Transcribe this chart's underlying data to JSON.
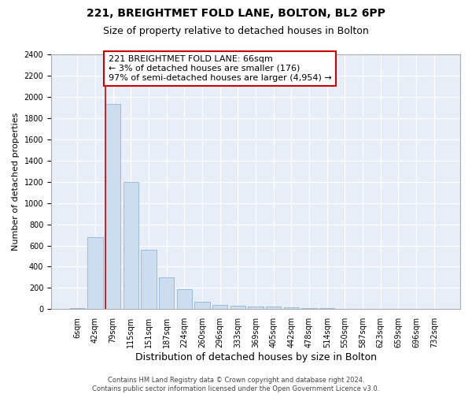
{
  "title_line1": "221, BREIGHTMET FOLD LANE, BOLTON, BL2 6PP",
  "title_line2": "Size of property relative to detached houses in Bolton",
  "xlabel": "Distribution of detached houses by size in Bolton",
  "ylabel": "Number of detached properties",
  "bar_color": "#ccddf0",
  "bar_edge_color": "#7bafd4",
  "categories": [
    "6sqm",
    "42sqm",
    "79sqm",
    "115sqm",
    "151sqm",
    "187sqm",
    "224sqm",
    "260sqm",
    "296sqm",
    "333sqm",
    "369sqm",
    "405sqm",
    "442sqm",
    "478sqm",
    "514sqm",
    "550sqm",
    "587sqm",
    "623sqm",
    "659sqm",
    "696sqm",
    "732sqm"
  ],
  "values": [
    8,
    680,
    1930,
    1200,
    560,
    300,
    190,
    70,
    40,
    30,
    25,
    25,
    18,
    12,
    8,
    6,
    4,
    3,
    3,
    3,
    3
  ],
  "ylim": [
    0,
    2400
  ],
  "yticks": [
    0,
    200,
    400,
    600,
    800,
    1000,
    1200,
    1400,
    1600,
    1800,
    2000,
    2200,
    2400
  ],
  "annotation_line1": "221 BREIGHTMET FOLD LANE: 66sqm",
  "annotation_line2": "← 3% of detached houses are smaller (176)",
  "annotation_line3": "97% of semi-detached houses are larger (4,954) →",
  "annotation_box_color": "#ffffff",
  "annotation_box_edge": "#cc0000",
  "property_line_color": "#cc0000",
  "footer_line1": "Contains HM Land Registry data © Crown copyright and database right 2024.",
  "footer_line2": "Contains public sector information licensed under the Open Government Licence v3.0.",
  "background_color": "#e8eef8",
  "grid_color": "#ffffff",
  "title_fontsize": 10,
  "subtitle_fontsize": 9,
  "tick_fontsize": 7,
  "ylabel_fontsize": 8,
  "xlabel_fontsize": 9,
  "footer_fontsize": 6,
  "annotation_fontsize": 8
}
